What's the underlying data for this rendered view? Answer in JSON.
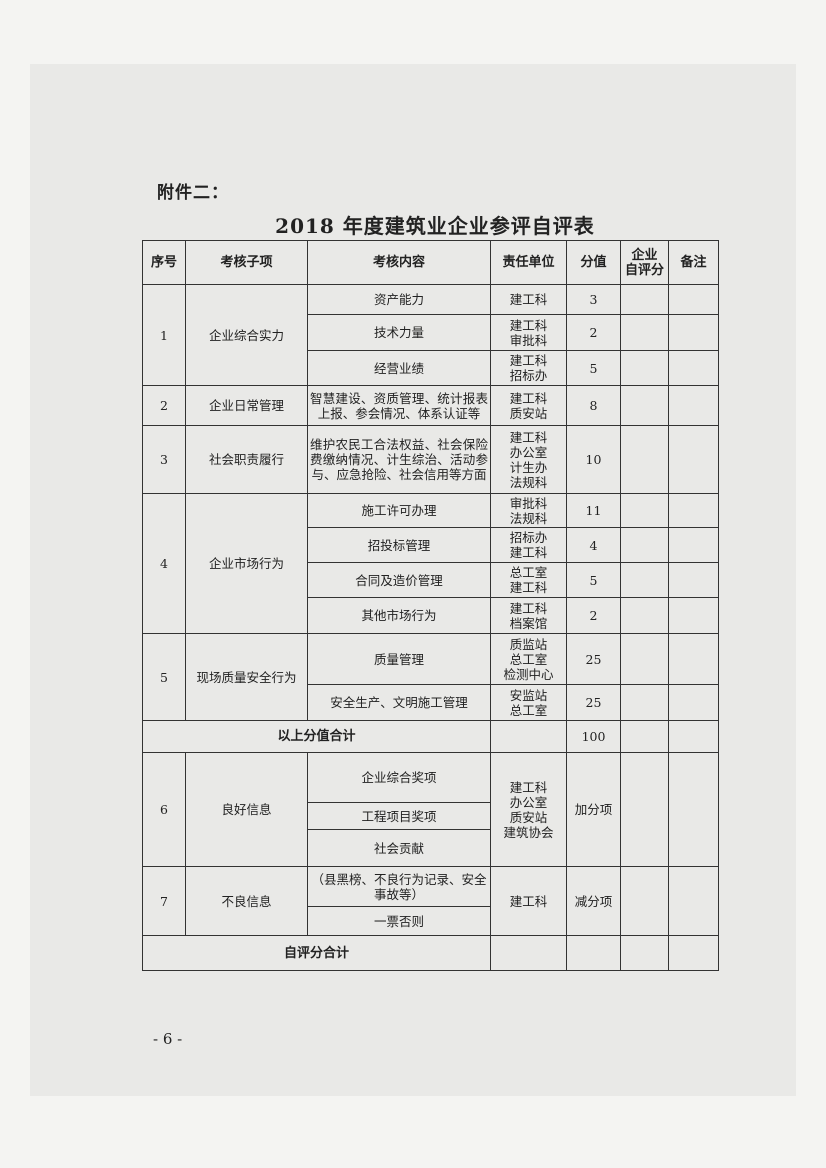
{
  "attachment_label": "附件二：",
  "title": "2018 年度建筑业企业参评自评表",
  "headers": [
    "序号",
    "考核子项",
    "考核内容",
    "责任单位",
    "分值",
    "企业\n自评分",
    "备注"
  ],
  "groups": [
    {
      "no": "1",
      "item": "企业综合实力",
      "subs": [
        {
          "content": "资产能力",
          "unit": "建工科",
          "score": "3"
        },
        {
          "content": "技术力量",
          "unit": "建工科\n审批科",
          "score": "2"
        },
        {
          "content": "经营业绩",
          "unit": "建工科\n招标办",
          "score": "5"
        }
      ]
    },
    {
      "no": "2",
      "item": "企业日常管理",
      "subs": [
        {
          "content": "智慧建设、资质管理、统计报表上报、参会情况、体系认证等",
          "unit": "建工科\n质安站",
          "score": "8"
        }
      ]
    },
    {
      "no": "3",
      "item": "社会职责履行",
      "subs": [
        {
          "content": "维护农民工合法权益、社会保险费缴纳情况、计生综治、活动参与、应急抢险、社会信用等方面",
          "unit": "建工科\n办公室\n计生办\n法规科",
          "score": "10"
        }
      ]
    },
    {
      "no": "4",
      "item": "企业市场行为",
      "subs": [
        {
          "content": "施工许可办理",
          "unit": "审批科\n法规科",
          "score": "11"
        },
        {
          "content": "招投标管理",
          "unit": "招标办\n建工科",
          "score": "4"
        },
        {
          "content": "合同及造价管理",
          "unit": "总工室\n建工科",
          "score": "5"
        },
        {
          "content": "其他市场行为",
          "unit": "建工科\n档案馆",
          "score": "2"
        }
      ]
    },
    {
      "no": "5",
      "item": "现场质量安全行为",
      "subs": [
        {
          "content": "质量管理",
          "unit": "质监站\n总工室\n检测中心",
          "score": "25"
        },
        {
          "content": "安全生产、文明施工管理",
          "unit": "安监站\n总工室",
          "score": "25"
        }
      ]
    }
  ],
  "subtotal": {
    "label": "以上分值合计",
    "score": "100"
  },
  "extra_groups": [
    {
      "no": "6",
      "item": "良好信息",
      "unit": "建工科\n办公室\n质安站\n建筑协会",
      "score": "加分项",
      "subs": [
        "企业综合奖项",
        "工程项目奖项",
        "社会贡献"
      ]
    },
    {
      "no": "7",
      "item": "不良信息",
      "unit": "建工科",
      "score": "减分项",
      "subs": [
        "（县黑榜、不良行为记录、安全事故等）",
        "一票否则"
      ]
    }
  ],
  "total": {
    "label": "自评分合计"
  },
  "page_number": "- 6 -"
}
